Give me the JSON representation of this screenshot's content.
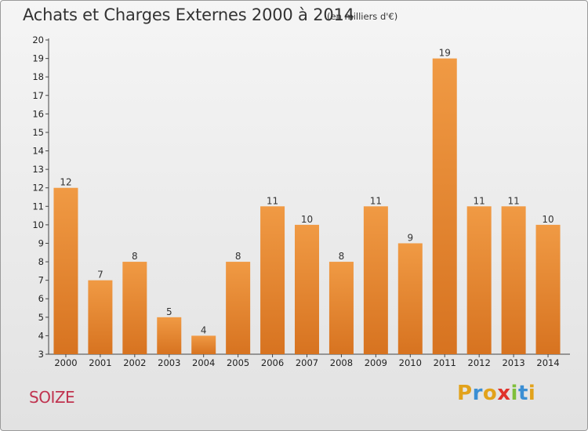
{
  "title": "Achats et Charges Externes 2000 à 2014",
  "unit_note": "(en milliers d'€)",
  "commune": "SOIZE",
  "logo": {
    "letters": [
      "P",
      "r",
      "o",
      "x",
      "i",
      "t",
      "i"
    ],
    "colors": [
      "#e2a21b",
      "#3b8fd4",
      "#e2a21b",
      "#e0322b",
      "#7fbf3a",
      "#3b8fd4",
      "#e2a21b"
    ]
  },
  "chart_data": {
    "type": "bar",
    "categories": [
      "2000",
      "2001",
      "2002",
      "2003",
      "2004",
      "2005",
      "2006",
      "2007",
      "2008",
      "2009",
      "2010",
      "2011",
      "2012",
      "2013",
      "2014"
    ],
    "values": [
      12,
      7,
      8,
      5,
      4,
      8,
      11,
      10,
      8,
      11,
      9,
      19,
      11,
      11,
      10
    ],
    "ylim": [
      3,
      20
    ],
    "yticks": [
      3,
      4,
      5,
      6,
      7,
      8,
      9,
      10,
      11,
      12,
      13,
      14,
      15,
      16,
      17,
      18,
      19,
      20
    ],
    "grid": false,
    "bar_color": "#f09a44",
    "bar_color_dark": "#d77320"
  }
}
